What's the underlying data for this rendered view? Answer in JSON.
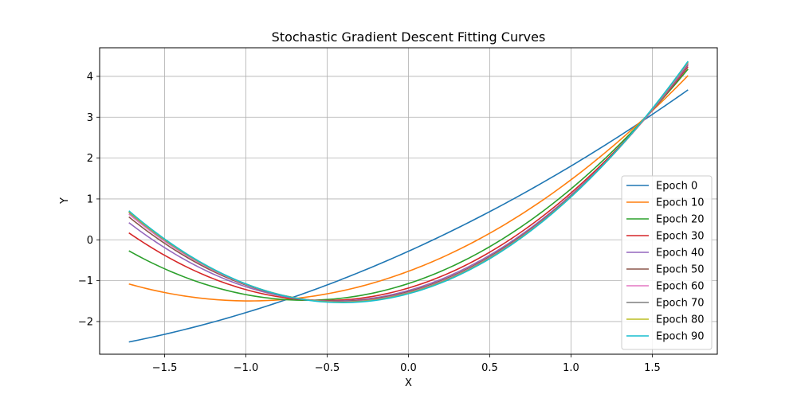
{
  "chart_data": {
    "type": "line",
    "title": "Stochastic Gradient Descent Fitting Curves",
    "xlabel": "X",
    "ylabel": "Y",
    "xlim": [
      -1.9,
      1.9
    ],
    "ylim": [
      -2.8,
      4.7
    ],
    "xticks": [
      -1.5,
      -1.0,
      -0.5,
      0.0,
      0.5,
      1.0,
      1.5
    ],
    "xtick_labels": [
      "−1.5",
      "−1.0",
      "−0.5",
      "0.0",
      "0.5",
      "1.0",
      "1.5"
    ],
    "yticks": [
      -2,
      -1,
      0,
      1,
      2,
      3,
      4
    ],
    "ytick_labels": [
      "−2",
      "−1",
      "0",
      "1",
      "2",
      "3",
      "4"
    ],
    "grid": true,
    "legend_position": "lower-right",
    "x_range": [
      -1.72,
      1.72
    ],
    "series": [
      {
        "name": "Epoch 0",
        "color": "#1f77b4",
        "x": [
          -1.72,
          0.0,
          1.72
        ],
        "y": [
          -2.5,
          -0.28,
          3.67
        ]
      },
      {
        "name": "Epoch 10",
        "color": "#ff7f0e",
        "x": [
          -1.72,
          0.0,
          1.72
        ],
        "y": [
          -1.08,
          -0.77,
          4.02
        ]
      },
      {
        "name": "Epoch 20",
        "color": "#2ca02c",
        "x": [
          -1.72,
          0.0,
          1.72
        ],
        "y": [
          -0.27,
          -1.07,
          4.18
        ]
      },
      {
        "name": "Epoch 30",
        "color": "#d62728",
        "x": [
          -1.72,
          0.0,
          1.72
        ],
        "y": [
          0.17,
          -1.18,
          4.24
        ]
      },
      {
        "name": "Epoch 40",
        "color": "#9467bd",
        "x": [
          -1.72,
          0.0,
          1.72
        ],
        "y": [
          0.42,
          -1.24,
          4.28
        ]
      },
      {
        "name": "Epoch 50",
        "color": "#8c564b",
        "x": [
          -1.72,
          0.0,
          1.72
        ],
        "y": [
          0.56,
          -1.27,
          4.31
        ]
      },
      {
        "name": "Epoch 60",
        "color": "#e377c2",
        "x": [
          -1.72,
          0.0,
          1.72
        ],
        "y": [
          0.63,
          -1.29,
          4.33
        ]
      },
      {
        "name": "Epoch 70",
        "color": "#7f7f7f",
        "x": [
          -1.72,
          0.0,
          1.72
        ],
        "y": [
          0.67,
          -1.3,
          4.35
        ]
      },
      {
        "name": "Epoch 80",
        "color": "#bcbd22",
        "x": [
          -1.72,
          0.0,
          1.72
        ],
        "y": [
          0.69,
          -1.31,
          4.36
        ]
      },
      {
        "name": "Epoch 90",
        "color": "#17becf",
        "x": [
          -1.72,
          0.0,
          1.72
        ],
        "y": [
          0.71,
          -1.32,
          4.37
        ]
      }
    ]
  }
}
